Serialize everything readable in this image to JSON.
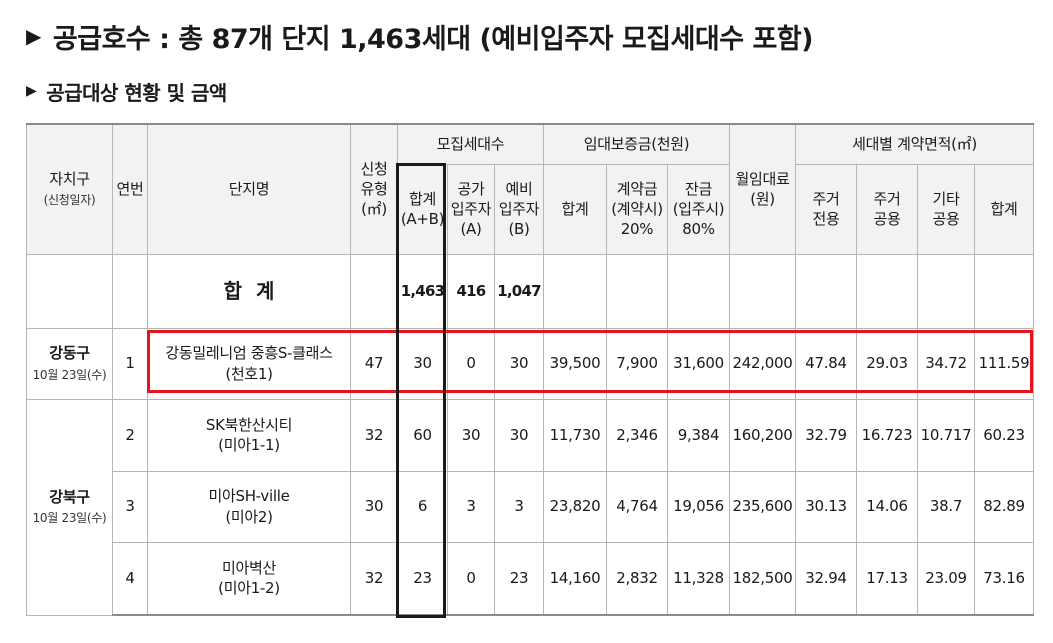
{
  "title": "공급호수 : 총 87개 단지 1,463세대 (예비입주자 모집세대수 포함)",
  "subtitle": "공급대상 현황 및 금액",
  "bullet": "▶",
  "header": {
    "district": "자치구",
    "district_sub": "(신청일자)",
    "no": "연번",
    "complex": "단지명",
    "apply_type_1": "신청",
    "apply_type_2": "유형",
    "apply_type_3": "(㎡)",
    "recruit_group": "모집세대수",
    "total_1": "합계",
    "total_2": "(A+B)",
    "public_1": "공가",
    "public_2": "입주자",
    "public_3": "(A)",
    "reserve_1": "예비",
    "reserve_2": "입주자",
    "reserve_3": "(B)",
    "deposit_group": "임대보증금(천원)",
    "deposit_total": "합계",
    "contract_1": "계약금",
    "contract_2": "(계약시)",
    "contract_3": "20%",
    "balance_1": "잔금",
    "balance_2": "(입주시)",
    "balance_3": "80%",
    "rent_1": "월임대료",
    "rent_2": "(원)",
    "area_group": "세대별 계약면적(㎡)",
    "res_exclusive_1": "주거",
    "res_exclusive_2": "전용",
    "res_common_1": "주거",
    "res_common_2": "공용",
    "other_1": "기타",
    "other_2": "공용",
    "area_total": "합계"
  },
  "summary": {
    "label": "합계",
    "total": "1,463",
    "public": "416",
    "reserve": "1,047"
  },
  "groups": {
    "gangdong": {
      "name": "강동구",
      "date": "10월 23일(수)"
    },
    "gangbuk": {
      "name": "강북구",
      "date": "10월 23일(수)"
    }
  },
  "rows": [
    {
      "no": "1",
      "name_1": "강동밀레니엄 중흥S-클래스",
      "name_2": "(천호1)",
      "type": "47",
      "total": "30",
      "public": "0",
      "reserve": "30",
      "deposit": "39,500",
      "contract": "7,900",
      "balance": "31,600",
      "rent": "242,000",
      "res_excl": "47.84",
      "res_common": "29.03",
      "other": "34.72",
      "area_total": "111.59"
    },
    {
      "no": "2",
      "name_1": "SK북한산시티",
      "name_2": "(미아1-1)",
      "type": "32",
      "total": "60",
      "public": "30",
      "reserve": "30",
      "deposit": "11,730",
      "contract": "2,346",
      "balance": "9,384",
      "rent": "160,200",
      "res_excl": "32.79",
      "res_common": "16.723",
      "other": "10.717",
      "area_total": "60.23"
    },
    {
      "no": "3",
      "name_1": "미아SH-ville",
      "name_2": "(미아2)",
      "type": "30",
      "total": "6",
      "public": "3",
      "reserve": "3",
      "deposit": "23,820",
      "contract": "4,764",
      "balance": "19,056",
      "rent": "235,600",
      "res_excl": "30.13",
      "res_common": "14.06",
      "other": "38.7",
      "area_total": "82.89"
    },
    {
      "no": "4",
      "name_1": "미아벽산",
      "name_2": "(미아1-2)",
      "type": "32",
      "total": "23",
      "public": "0",
      "reserve": "23",
      "deposit": "14,160",
      "contract": "2,832",
      "balance": "11,328",
      "rent": "182,500",
      "res_excl": "32.94",
      "res_common": "17.13",
      "other": "23.09",
      "area_total": "73.16"
    }
  ],
  "colors": {
    "highlight_row": "#e3161d",
    "highlight_column": "#1a1a1a",
    "header_bg": "#f2f2f2"
  }
}
